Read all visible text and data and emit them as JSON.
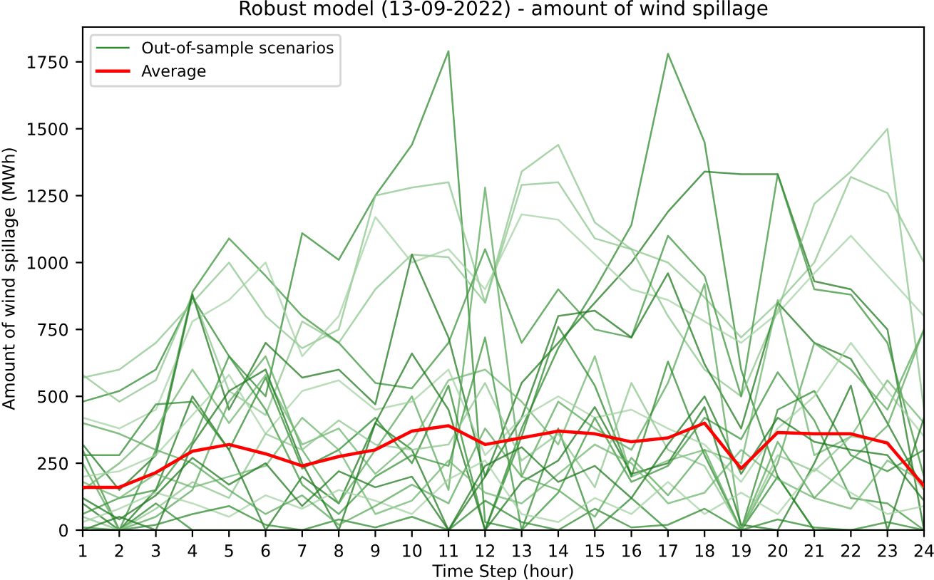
{
  "chart_data": {
    "type": "line",
    "title": "Robust model (13-09-2022) - amount of wind spillage",
    "xlabel": "Time Step (hour)",
    "ylabel": "Amount of wind spillage (MWh)",
    "x": [
      1,
      2,
      3,
      4,
      5,
      6,
      7,
      8,
      9,
      10,
      11,
      12,
      13,
      14,
      15,
      16,
      17,
      18,
      19,
      20,
      21,
      22,
      23,
      24
    ],
    "xlim": [
      1,
      24
    ],
    "ylim": [
      0,
      1880
    ],
    "xticks": [
      1,
      2,
      3,
      4,
      5,
      6,
      7,
      8,
      9,
      10,
      11,
      12,
      13,
      14,
      15,
      16,
      17,
      18,
      19,
      20,
      21,
      22,
      23,
      24
    ],
    "yticks": [
      0,
      250,
      500,
      750,
      1000,
      1250,
      1500,
      1750
    ],
    "grid": false,
    "legend": "top left",
    "marker": "none",
    "line_style": "solid",
    "series": [
      {
        "name": "Out-of-sample scenarios",
        "color": "#2e8b2e",
        "values": [
          480,
          520,
          600,
          870,
          650,
          500,
          1110,
          1010,
          1250,
          1440,
          1790,
          30,
          0,
          380,
          0,
          120,
          0,
          0,
          0,
          200,
          0,
          0,
          0,
          0
        ]
      },
      {
        "color": "#2e8b2e",
        "values": [
          0,
          0,
          100,
          0,
          0,
          0,
          0,
          0,
          0,
          0,
          0,
          0,
          380,
          680,
          900,
          1140,
          1780,
          1450,
          600,
          200,
          0,
          0,
          0,
          0
        ]
      },
      {
        "color": "#1f7a1f",
        "values": [
          100,
          0,
          150,
          500,
          300,
          0,
          200,
          100,
          400,
          300,
          0,
          200,
          550,
          700,
          850,
          1000,
          1190,
          1340,
          1330,
          1330,
          930,
          900,
          750,
          0
        ]
      },
      {
        "color": "#8cc68c",
        "values": [
          570,
          600,
          700,
          850,
          1000,
          800,
          680,
          750,
          1250,
          1280,
          1300,
          850,
          1340,
          1440,
          1150,
          1050,
          800,
          600,
          500,
          820,
          1220,
          1340,
          1500,
          450
        ]
      },
      {
        "color": "#8cc68c",
        "values": [
          580,
          480,
          560,
          880,
          520,
          430,
          780,
          700,
          900,
          1030,
          1020,
          850,
          1290,
          1300,
          1090,
          1050,
          1000,
          870,
          720,
          850,
          1000,
          1320,
          1260,
          1000
        ]
      },
      {
        "color": "#3c963c",
        "values": [
          300,
          0,
          300,
          890,
          1090,
          950,
          800,
          700,
          550,
          530,
          700,
          1050,
          700,
          900,
          750,
          720,
          1100,
          950,
          500,
          1330,
          900,
          880,
          700,
          200
        ]
      },
      {
        "color": "#a3d1a3",
        "values": [
          420,
          380,
          450,
          780,
          860,
          1000,
          650,
          800,
          1170,
          1000,
          1050,
          900,
          1180,
          1160,
          1030,
          900,
          860,
          780,
          700,
          810,
          960,
          1100,
          950,
          800
        ]
      },
      {
        "color": "#1f7a1f",
        "values": [
          320,
          150,
          280,
          880,
          450,
          700,
          570,
          600,
          470,
          1030,
          720,
          200,
          420,
          800,
          820,
          720,
          960,
          620,
          380,
          850,
          700,
          640,
          400,
          150
        ]
      },
      {
        "color": "#5aa85a",
        "values": [
          250,
          0,
          50,
          150,
          480,
          650,
          300,
          100,
          300,
          500,
          150,
          1280,
          200,
          480,
          380,
          300,
          550,
          920,
          0,
          250,
          700,
          600,
          450,
          750
        ]
      },
      {
        "color": "#6eb56e",
        "values": [
          150,
          250,
          380,
          600,
          400,
          580,
          320,
          380,
          210,
          330,
          560,
          600,
          480,
          320,
          650,
          200,
          260,
          300,
          250,
          860,
          280,
          350,
          560,
          400
        ]
      },
      {
        "color": "#2e8b2e",
        "values": [
          280,
          280,
          470,
          480,
          300,
          570,
          230,
          300,
          420,
          250,
          540,
          0,
          350,
          760,
          540,
          200,
          630,
          280,
          0,
          450,
          520,
          280,
          220,
          300
        ]
      },
      {
        "color": "#a3d1a3",
        "values": [
          200,
          220,
          280,
          430,
          580,
          360,
          520,
          560,
          450,
          480,
          600,
          280,
          420,
          500,
          420,
          450,
          380,
          320,
          180,
          380,
          500,
          700,
          520,
          350
        ]
      },
      {
        "color": "#3c963c",
        "values": [
          60,
          120,
          150,
          330,
          650,
          450,
          170,
          60,
          200,
          280,
          240,
          720,
          0,
          140,
          420,
          180,
          240,
          420,
          340,
          590,
          410,
          120,
          100,
          0
        ]
      },
      {
        "color": "#8cc68c",
        "values": [
          50,
          0,
          80,
          180,
          120,
          360,
          300,
          410,
          320,
          300,
          320,
          550,
          260,
          360,
          160,
          550,
          300,
          240,
          0,
          280,
          220,
          350,
          330,
          150
        ]
      },
      {
        "color": "#1f7a1f",
        "values": [
          0,
          50,
          0,
          320,
          520,
          600,
          250,
          0,
          400,
          660,
          450,
          0,
          180,
          260,
          460,
          210,
          250,
          460,
          20,
          0,
          250,
          540,
          0,
          420
        ]
      },
      {
        "color": "#6eb56e",
        "values": [
          180,
          120,
          210,
          160,
          200,
          240,
          420,
          300,
          60,
          110,
          260,
          140,
          100,
          210,
          320,
          250,
          100,
          140,
          300,
          190,
          120,
          80,
          260,
          180
        ]
      },
      {
        "color": "#a3d1a3",
        "values": [
          30,
          80,
          140,
          100,
          50,
          130,
          80,
          150,
          110,
          60,
          190,
          260,
          60,
          30,
          120,
          60,
          180,
          60,
          140,
          60,
          230,
          140,
          60,
          90
        ]
      },
      {
        "color": "#2e8b2e",
        "values": [
          10,
          0,
          20,
          60,
          90,
          20,
          0,
          40,
          10,
          50,
          0,
          110,
          30,
          0,
          80,
          10,
          20,
          80,
          0,
          40,
          10,
          0,
          30,
          0
        ]
      },
      {
        "color": "#5aa85a",
        "values": [
          400,
          360,
          300,
          250,
          150,
          60,
          130,
          20,
          90,
          170,
          100,
          380,
          200,
          150,
          50,
          270,
          130,
          300,
          0,
          330,
          120,
          260,
          390,
          750
        ]
      },
      {
        "color": "#1f7a1f",
        "values": [
          120,
          40,
          130,
          270,
          170,
          250,
          90,
          220,
          160,
          200,
          0,
          240,
          310,
          180,
          240,
          120,
          320,
          500,
          210,
          420,
          330,
          300,
          280,
          110
        ]
      },
      {
        "name": "Average",
        "color": "#ff0000",
        "values": [
          160,
          160,
          215,
          295,
          320,
          285,
          240,
          275,
          300,
          370,
          390,
          320,
          345,
          370,
          360,
          330,
          345,
          400,
          230,
          365,
          360,
          360,
          325,
          165
        ]
      }
    ]
  }
}
